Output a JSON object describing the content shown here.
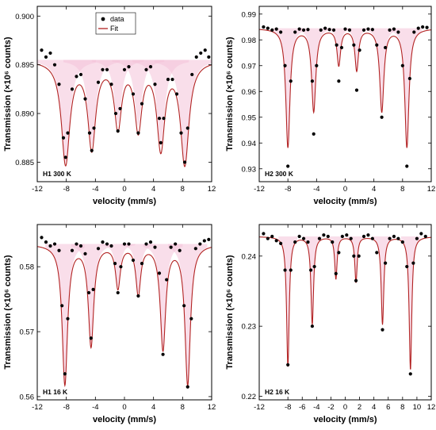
{
  "figure": {
    "legend": {
      "data_label": "data",
      "fit_label": "Fit"
    }
  },
  "colors": {
    "data_points": "#000000",
    "fit_line": "#b22222",
    "subspectra_fill": "#f4c2d9"
  },
  "chart_data": [
    {
      "type": "scatter",
      "panel_label": "H1 300 K",
      "xlabel": "velocity (mm/s)",
      "ylabel": "Transmission (×10⁶ counts)",
      "xlim": [
        -12,
        12
      ],
      "ylim": [
        0.883,
        0.901
      ],
      "xticks": [
        "-12",
        "-8",
        "-4",
        "0",
        "4",
        "8",
        "12"
      ],
      "yticks": [
        "0.885",
        "0.890",
        "0.895",
        "0.900"
      ],
      "legend": "top-left",
      "baseline": 0.8955,
      "peaks": [
        {
          "pos": -8.1,
          "depth": 0.0105,
          "width": 0.7
        },
        {
          "pos": -4.5,
          "depth": 0.0088,
          "width": 0.65
        },
        {
          "pos": -0.9,
          "depth": 0.0066,
          "width": 0.6
        },
        {
          "pos": 1.9,
          "depth": 0.0068,
          "width": 0.6
        },
        {
          "pos": 5.0,
          "depth": 0.0088,
          "width": 0.65
        },
        {
          "pos": 8.3,
          "depth": 0.0105,
          "width": 0.7
        }
      ],
      "series": [
        {
          "name": "data",
          "x": [
            -11.4,
            -10.8,
            -10.2,
            -9.6,
            -9.0,
            -8.4,
            -8.1,
            -7.8,
            -7.2,
            -6.6,
            -6.0,
            -5.4,
            -4.8,
            -4.5,
            -4.2,
            -3.6,
            -3.0,
            -2.4,
            -1.8,
            -1.2,
            -0.9,
            -0.6,
            0.0,
            0.6,
            1.2,
            1.9,
            2.4,
            3.0,
            3.6,
            4.2,
            4.8,
            5.0,
            5.4,
            6.0,
            6.6,
            7.2,
            7.8,
            8.3,
            8.7,
            9.3,
            9.9,
            10.5,
            11.1,
            11.6
          ],
          "y": [
            0.8965,
            0.8958,
            0.8962,
            0.895,
            0.893,
            0.8875,
            0.8855,
            0.888,
            0.8925,
            0.8938,
            0.894,
            0.8915,
            0.888,
            0.8862,
            0.8885,
            0.8932,
            0.8945,
            0.8945,
            0.893,
            0.89,
            0.8882,
            0.8905,
            0.8945,
            0.8948,
            0.892,
            0.888,
            0.891,
            0.8945,
            0.8948,
            0.893,
            0.8895,
            0.887,
            0.8895,
            0.8935,
            0.8935,
            0.892,
            0.888,
            0.885,
            0.8885,
            0.894,
            0.8958,
            0.8962,
            0.8965,
            0.8958
          ]
        }
      ]
    },
    {
      "type": "scatter",
      "panel_label": "H2 300 K",
      "xlabel": "velocity (mm/s)",
      "ylabel": "Transmission (×10⁶ counts)",
      "xlim": [
        -12,
        12
      ],
      "ylim": [
        0.925,
        0.993
      ],
      "xticks": [
        "-12",
        "-8",
        "-4",
        "0",
        "4",
        "8",
        "12"
      ],
      "yticks": [
        "0.93",
        "0.94",
        "0.95",
        "0.96",
        "0.97",
        "0.98",
        "0.99"
      ],
      "baseline": 0.9845,
      "peaks": [
        {
          "pos": -8.0,
          "depth": 0.046,
          "width": 0.35
        },
        {
          "pos": -4.4,
          "depth": 0.032,
          "width": 0.35
        },
        {
          "pos": -0.9,
          "depth": 0.014,
          "width": 0.3
        },
        {
          "pos": 1.6,
          "depth": 0.016,
          "width": 0.3
        },
        {
          "pos": 5.1,
          "depth": 0.032,
          "width": 0.35
        },
        {
          "pos": 8.6,
          "depth": 0.046,
          "width": 0.35
        }
      ],
      "series": [
        {
          "name": "data",
          "x": [
            -11.4,
            -10.8,
            -10.2,
            -9.6,
            -9.0,
            -8.4,
            -8.0,
            -7.6,
            -7.0,
            -6.4,
            -5.8,
            -5.2,
            -4.6,
            -4.4,
            -4.0,
            -3.4,
            -2.8,
            -2.2,
            -1.6,
            -1.2,
            -0.9,
            -0.5,
            0.0,
            0.6,
            1.2,
            1.6,
            2.0,
            2.6,
            3.2,
            3.8,
            4.4,
            5.1,
            5.6,
            6.2,
            6.8,
            7.4,
            8.0,
            8.6,
            9.0,
            9.6,
            10.2,
            10.8,
            11.4
          ],
          "y": [
            0.985,
            0.9845,
            0.9838,
            0.9842,
            0.983,
            0.97,
            0.931,
            0.964,
            0.983,
            0.9842,
            0.9838,
            0.984,
            0.964,
            0.9435,
            0.97,
            0.9838,
            0.9845,
            0.984,
            0.9838,
            0.978,
            0.964,
            0.977,
            0.9842,
            0.9838,
            0.978,
            0.9605,
            0.976,
            0.9838,
            0.9842,
            0.984,
            0.978,
            0.95,
            0.977,
            0.9838,
            0.9842,
            0.983,
            0.97,
            0.931,
            0.965,
            0.983,
            0.9845,
            0.985,
            0.9848
          ]
        }
      ]
    },
    {
      "type": "scatter",
      "panel_label": "H1 16 K",
      "xlabel": "velocity (mm/s)",
      "ylabel": "Transmission (×10⁶ counts)",
      "xlim": [
        -12,
        12
      ],
      "ylim": [
        0.5595,
        0.5865
      ],
      "xticks": [
        "-12",
        "-8",
        "-4",
        "0",
        "4",
        "8",
        "12"
      ],
      "yticks": [
        "0.56",
        "0.57",
        "0.58"
      ],
      "baseline": 0.5835,
      "peaks": [
        {
          "pos": -8.2,
          "depth": 0.0215,
          "width": 0.45
        },
        {
          "pos": -4.6,
          "depth": 0.0155,
          "width": 0.45
        },
        {
          "pos": -0.9,
          "depth": 0.0065,
          "width": 0.4
        },
        {
          "pos": 1.9,
          "depth": 0.0075,
          "width": 0.4
        },
        {
          "pos": 5.3,
          "depth": 0.016,
          "width": 0.45
        },
        {
          "pos": 8.7,
          "depth": 0.0215,
          "width": 0.45
        }
      ],
      "series": [
        {
          "name": "data",
          "x": [
            -11.4,
            -10.8,
            -10.2,
            -9.6,
            -9.0,
            -8.6,
            -8.2,
            -7.8,
            -7.2,
            -6.6,
            -6.0,
            -5.4,
            -4.9,
            -4.6,
            -4.3,
            -3.6,
            -3.0,
            -2.4,
            -1.8,
            -1.3,
            -0.9,
            -0.5,
            0.0,
            0.6,
            1.2,
            1.9,
            2.4,
            3.0,
            3.6,
            4.2,
            4.8,
            5.3,
            5.8,
            6.4,
            7.0,
            7.6,
            8.2,
            8.7,
            9.2,
            9.8,
            10.4,
            11.0,
            11.6
          ],
          "y": [
            0.5845,
            0.5838,
            0.5832,
            0.5835,
            0.5825,
            0.574,
            0.5635,
            0.572,
            0.5825,
            0.5835,
            0.5832,
            0.582,
            0.576,
            0.569,
            0.5765,
            0.5828,
            0.5838,
            0.5835,
            0.5832,
            0.5805,
            0.576,
            0.58,
            0.5835,
            0.5835,
            0.581,
            0.5755,
            0.5805,
            0.5835,
            0.5838,
            0.583,
            0.579,
            0.5665,
            0.578,
            0.583,
            0.5835,
            0.5825,
            0.574,
            0.5615,
            0.572,
            0.5828,
            0.5835,
            0.584,
            0.5842
          ]
        }
      ]
    },
    {
      "type": "scatter",
      "panel_label": "H2 16 K",
      "xlabel": "velocity (mm/s)",
      "ylabel": "Transmission (×10⁶ counts)",
      "xlim": [
        -12,
        12
      ],
      "ylim": [
        0.2195,
        0.2445
      ],
      "xticks": [
        "-12",
        "-8",
        "-6",
        "-4",
        "-2",
        "0",
        "2",
        "4",
        "6",
        "8",
        "10",
        "12"
      ],
      "yticks": [
        "0.22",
        "0.23",
        "0.24"
      ],
      "baseline": 0.2428,
      "peaks": [
        {
          "pos": -8.0,
          "depth": 0.0185,
          "width": 0.22
        },
        {
          "pos": -4.6,
          "depth": 0.0125,
          "width": 0.22
        },
        {
          "pos": -1.3,
          "depth": 0.006,
          "width": 0.2
        },
        {
          "pos": 1.5,
          "depth": 0.0065,
          "width": 0.2
        },
        {
          "pos": 5.2,
          "depth": 0.0125,
          "width": 0.22
        },
        {
          "pos": 9.1,
          "depth": 0.019,
          "width": 0.22
        }
      ],
      "series": [
        {
          "name": "data",
          "x": [
            -11.4,
            -10.8,
            -10.2,
            -9.6,
            -9.0,
            -8.4,
            -8.0,
            -7.6,
            -7.0,
            -6.4,
            -5.8,
            -5.2,
            -4.8,
            -4.6,
            -4.3,
            -3.6,
            -3.0,
            -2.4,
            -1.8,
            -1.3,
            -0.9,
            -0.4,
            0.2,
            0.8,
            1.2,
            1.5,
            1.9,
            2.6,
            3.2,
            3.8,
            4.4,
            5.2,
            5.6,
            6.2,
            6.8,
            7.4,
            8.0,
            8.6,
            9.1,
            9.5,
            10.0,
            10.6,
            11.2
          ],
          "y": [
            0.2432,
            0.2425,
            0.2428,
            0.2422,
            0.2418,
            0.238,
            0.2245,
            0.238,
            0.242,
            0.2428,
            0.2425,
            0.242,
            0.238,
            0.23,
            0.2385,
            0.2425,
            0.243,
            0.2428,
            0.242,
            0.2375,
            0.2405,
            0.2428,
            0.243,
            0.2425,
            0.24,
            0.2365,
            0.24,
            0.2428,
            0.243,
            0.2425,
            0.2405,
            0.2295,
            0.239,
            0.2425,
            0.2428,
            0.2425,
            0.242,
            0.2385,
            0.2232,
            0.239,
            0.2425,
            0.2432,
            0.2428
          ]
        }
      ]
    }
  ]
}
